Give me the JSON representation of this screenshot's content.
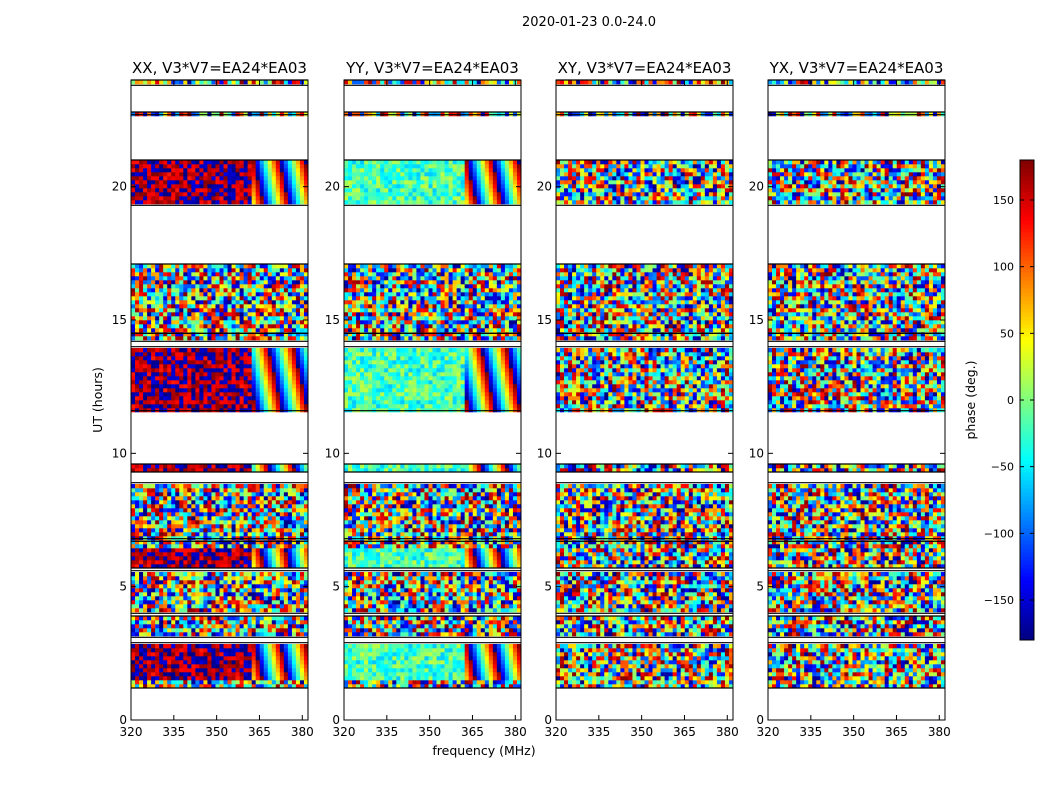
{
  "figure": {
    "suptitle": "2020-01-23 0.0-24.0"
  },
  "chart_data": {
    "type": "heatmap",
    "shared": {
      "xlabel": "frequency (MHz)",
      "ylabel": "UT (hours)",
      "xlim": [
        320,
        382
      ],
      "ylim": [
        0,
        24
      ],
      "xticks": [
        320,
        335,
        350,
        365,
        380
      ],
      "yticks": [
        0,
        5,
        10,
        15,
        20
      ],
      "colormap": "jet",
      "colorbar": {
        "label": "phase (deg.)",
        "range": [
          -180,
          180
        ],
        "ticks": [
          -150,
          -100,
          -50,
          0,
          50,
          100,
          150
        ],
        "tick_labels": [
          "−150",
          "−100",
          "−50",
          "0",
          "50",
          "100",
          "150"
        ]
      },
      "data_time_blocks_hours": [
        [
          1.2,
          2.9
        ],
        [
          3.1,
          3.9
        ],
        [
          4.0,
          5.6
        ],
        [
          5.7,
          6.7
        ],
        [
          6.8,
          8.9
        ],
        [
          9.3,
          9.6
        ],
        [
          11.6,
          14.0
        ],
        [
          14.2,
          14.5
        ],
        [
          14.5,
          17.1
        ],
        [
          19.3,
          21.0
        ],
        [
          22.7,
          22.8
        ],
        [
          23.8,
          24.0
        ]
      ],
      "flagged_time_ranges_hours": [
        [
          0.0,
          1.2
        ],
        [
          9.6,
          11.6
        ],
        [
          17.1,
          19.3
        ],
        [
          21.0,
          22.7
        ],
        [
          22.8,
          23.8
        ]
      ],
      "calibrator_blocks_hours": [
        [
          1.5,
          2.9
        ],
        [
          5.6,
          6.4
        ],
        [
          9.3,
          9.6
        ],
        [
          11.6,
          14.0
        ],
        [
          19.3,
          21.0
        ]
      ],
      "frequency_split_mhz": 362
    },
    "panels": [
      {
        "title": "XX, V3*V7=EA24*EA03",
        "calibrator_phase_deg": 170
      },
      {
        "title": "YY, V3*V7=EA24*EA03",
        "calibrator_phase_deg": -20
      },
      {
        "title": "XY, V3*V7=EA24*EA03",
        "calibrator_phase_deg": null
      },
      {
        "title": "YX, V3*V7=EA24*EA03",
        "calibrator_phase_deg": null
      }
    ]
  }
}
